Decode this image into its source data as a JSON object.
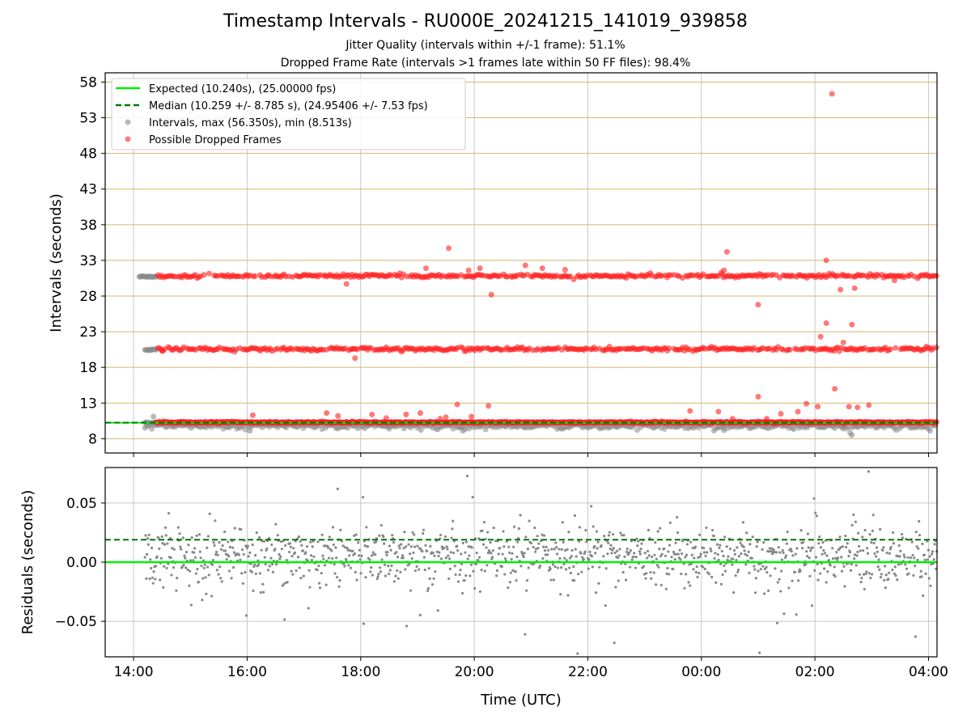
{
  "figure": {
    "title": "Timestamp Intervals - RU000E_20241215_141019_939858",
    "subtitle_1": "Jitter Quality (intervals within +/-1 frame): 51.1%",
    "subtitle_2": "Dropped Frame Rate (intervals >1 frames late within 50 FF files): 98.4%"
  },
  "colors": {
    "expected": "#00ee00",
    "median": "#007700",
    "intervals": "#888888",
    "dropped": "#ff2020",
    "hgrid": "#d2b870",
    "vgrid": "#c8c8c8"
  },
  "chart_data": [
    {
      "type": "scatter",
      "panel": "top",
      "ylabel": "Intervals (seconds)",
      "xlabel": "",
      "y_ticks": [
        8,
        13,
        18,
        23,
        28,
        33,
        38,
        43,
        48,
        53,
        58
      ],
      "ylim": [
        6,
        59.3
      ],
      "xlim_hours": [
        13.5,
        28.15
      ],
      "x_ticks": [
        "14:00",
        "16:00",
        "18:00",
        "20:00",
        "22:00",
        "00:00",
        "02:00",
        "04:00"
      ],
      "x_tick_hours": [
        14,
        16,
        18,
        20,
        22,
        24,
        26,
        28
      ],
      "grid": true,
      "legend_position": "upper-left",
      "legend": {
        "expected": "Expected (10.240s), (25.00000 fps)",
        "median": "Median (10.259 +/- 8.785 s), (24.95406 +/- 7.53 fps)",
        "intervals": "Intervals, max (56.350s), min (8.513s)",
        "dropped": "Possible Dropped Frames"
      },
      "expected_interval": 10.24,
      "median_interval": 10.259,
      "interval_bands": [
        {
          "name": "single frame interval",
          "y": 10.24,
          "x_start": 14.2,
          "x_end": 28.15
        },
        {
          "name": "double interval",
          "y": 20.48,
          "x_start": 14.2,
          "x_end": 28.15
        },
        {
          "name": "triple interval",
          "y": 30.72,
          "x_start": 14.1,
          "x_end": 28.15
        }
      ],
      "dropped_band_start_hour": 14.4,
      "outliers_dropped": [
        [
          14.5,
          20.3
        ],
        [
          16.1,
          11.3
        ],
        [
          17.4,
          11.6
        ],
        [
          17.6,
          11.2
        ],
        [
          17.75,
          29.7
        ],
        [
          17.9,
          19.3
        ],
        [
          18.2,
          11.4
        ],
        [
          18.45,
          10.9
        ],
        [
          18.8,
          11.4
        ],
        [
          19.05,
          11.6
        ],
        [
          19.15,
          31.9
        ],
        [
          19.4,
          10.8
        ],
        [
          19.5,
          11.0
        ],
        [
          19.55,
          34.7
        ],
        [
          19.7,
          12.8
        ],
        [
          19.9,
          31.6
        ],
        [
          19.95,
          11.1
        ],
        [
          20.1,
          31.9
        ],
        [
          20.25,
          12.6
        ],
        [
          20.3,
          28.2
        ],
        [
          20.9,
          32.3
        ],
        [
          21.2,
          31.9
        ],
        [
          21.6,
          31.7
        ],
        [
          23.8,
          11.9
        ],
        [
          24.35,
          31.3
        ],
        [
          24.4,
          31.6
        ],
        [
          24.45,
          34.2
        ],
        [
          24.3,
          11.8
        ],
        [
          24.55,
          10.8
        ],
        [
          25.0,
          26.8
        ],
        [
          25.0,
          13.9
        ],
        [
          25.15,
          10.8
        ],
        [
          25.4,
          11.5
        ],
        [
          25.7,
          11.8
        ],
        [
          25.85,
          12.9
        ],
        [
          26.05,
          12.5
        ],
        [
          26.1,
          22.3
        ],
        [
          26.2,
          24.2
        ],
        [
          26.2,
          33.0
        ],
        [
          26.35,
          15.0
        ],
        [
          26.45,
          28.9
        ],
        [
          26.5,
          21.5
        ],
        [
          26.6,
          12.5
        ],
        [
          26.65,
          24.0
        ],
        [
          26.7,
          29.1
        ],
        [
          26.75,
          12.4
        ],
        [
          26.95,
          12.7
        ],
        [
          27.4,
          30.2
        ],
        [
          26.3,
          56.35
        ]
      ],
      "outliers_intervals": [
        [
          14.35,
          11.1
        ],
        [
          16.05,
          9.1
        ],
        [
          18.5,
          9.4
        ],
        [
          19.8,
          9.1
        ],
        [
          24.4,
          9.2
        ],
        [
          26.5,
          9.4
        ],
        [
          26.65,
          8.513
        ]
      ]
    },
    {
      "type": "scatter",
      "panel": "bottom",
      "ylabel": "Residuals (seconds)",
      "xlabel": "Time (UTC)",
      "y_ticks": [
        -0.05,
        0.0,
        0.05
      ],
      "y_tick_labels": [
        "−0.05",
        "0.00",
        "0.05"
      ],
      "ylim": [
        -0.08,
        0.08
      ],
      "xlim_hours": [
        13.5,
        28.15
      ],
      "x_ticks": [
        "14:00",
        "16:00",
        "18:00",
        "20:00",
        "22:00",
        "00:00",
        "02:00",
        "04:00"
      ],
      "x_tick_hours": [
        14,
        16,
        18,
        20,
        22,
        24,
        26,
        28
      ],
      "expected_residual": 0.0,
      "median_residual": 0.019,
      "residual_range": [
        -0.08,
        0.08
      ],
      "residual_x_start_hour": 14.2,
      "grid": true
    }
  ]
}
